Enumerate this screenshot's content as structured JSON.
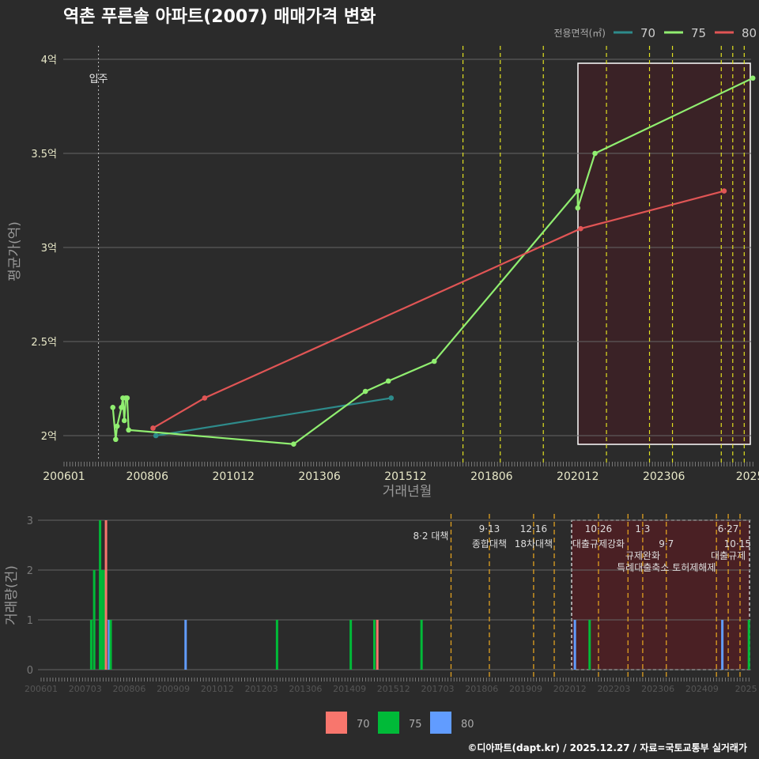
{
  "title": "역촌 푸른솔 아파트(2007) 매매가격 변화",
  "footer": "©디아파트(dapt.kr) / 2025.12.27 / 자료=국토교통부 실거래가",
  "colors": {
    "s70": "#2e8b8b",
    "s75": "#90ee70",
    "s80": "#e05555",
    "b70": "#f8766d",
    "b75": "#00ba38",
    "b80": "#619cff",
    "policy_top": "#e0e020",
    "policy_bottom": "#e0a020"
  },
  "chart_data": [
    {
      "type": "line",
      "title": "역촌 푸른솔 아파트(2007) 매매가격 변화",
      "xlabel": "거래년월",
      "ylabel": "평균가(억)",
      "legend_title": "전용면적(㎡)",
      "legend_position": "top-right",
      "x_ticks": [
        "200601",
        "200806",
        "201012",
        "201306",
        "201512",
        "201806",
        "202012",
        "202306",
        "2025"
      ],
      "x_tick_months": [
        0,
        29,
        59,
        89,
        119,
        149,
        179,
        209,
        239
      ],
      "y_ticks": [
        {
          "v": 2,
          "label": "2억"
        },
        {
          "v": 2.5,
          "label": "2.5억"
        },
        {
          "v": 3,
          "label": "3억"
        },
        {
          "v": 3.5,
          "label": "3.5억"
        },
        {
          "v": 4,
          "label": "4억"
        }
      ],
      "ylim": [
        1.87,
        4.05
      ],
      "x_range_months": [
        0,
        240
      ],
      "start": "200601",
      "annotation": {
        "label": "입주",
        "month": 12
      },
      "highlight_from_month": 179,
      "series": [
        {
          "name": "70",
          "points": [
            [
              32,
              2.0
            ],
            [
              114,
              2.2
            ]
          ]
        },
        {
          "name": "75",
          "points": [
            [
              17,
              2.15
            ],
            [
              18,
              1.98
            ],
            [
              18.5,
              2.05
            ],
            [
              20,
              2.15
            ],
            [
              20.5,
              2.2
            ],
            [
              21,
              2.08
            ],
            [
              21.5,
              2.2
            ],
            [
              22,
              2.2
            ],
            [
              22.5,
              2.03
            ],
            [
              80,
              1.955
            ],
            [
              105,
              2.235
            ],
            [
              113,
              2.29
            ],
            [
              129,
              2.395
            ],
            [
              179,
              3.3
            ],
            [
              179,
              3.21
            ],
            [
              185,
              3.5
            ],
            [
              240,
              3.9
            ]
          ]
        },
        {
          "name": "80",
          "points": [
            [
              31,
              2.04
            ],
            [
              49,
              2.2
            ],
            [
              180,
              3.1
            ],
            [
              230,
              3.3
            ]
          ]
        }
      ]
    },
    {
      "type": "bar",
      "xlabel": "",
      "ylabel": "거래량(건)",
      "y_ticks": [
        0,
        1,
        2,
        3
      ],
      "ylim": [
        0,
        3
      ],
      "x_ticks": [
        "200601",
        "200703",
        "200806",
        "200909",
        "201012",
        "201203",
        "201306",
        "201409",
        "201512",
        "201703",
        "201806",
        "201909",
        "202012",
        "202203",
        "202306",
        "202409",
        "2025"
      ],
      "legend": [
        "70",
        "75",
        "80"
      ],
      "legend_position": "bottom",
      "bars": [
        {
          "m": 17,
          "s": "75",
          "v": 1
        },
        {
          "m": 18,
          "s": "75",
          "v": 2
        },
        {
          "m": 20,
          "s": "75",
          "v": 3
        },
        {
          "m": 20.7,
          "s": "75",
          "v": 2
        },
        {
          "m": 21.5,
          "s": "75",
          "v": 2
        },
        {
          "m": 22,
          "s": "70",
          "v": 3
        },
        {
          "m": 23,
          "s": "80",
          "v": 1
        },
        {
          "m": 23.6,
          "s": "75",
          "v": 1
        },
        {
          "m": 49,
          "s": "80",
          "v": 1
        },
        {
          "m": 80,
          "s": "75",
          "v": 1
        },
        {
          "m": 105,
          "s": "75",
          "v": 1
        },
        {
          "m": 113,
          "s": "75",
          "v": 1
        },
        {
          "m": 114,
          "s": "70",
          "v": 1
        },
        {
          "m": 129,
          "s": "75",
          "v": 1
        },
        {
          "m": 181,
          "s": "80",
          "v": 1
        },
        {
          "m": 186,
          "s": "75",
          "v": 1
        },
        {
          "m": 231,
          "s": "80",
          "v": 1
        },
        {
          "m": 240,
          "s": "75",
          "v": 1
        }
      ],
      "policies": [
        {
          "m": 139,
          "date": "",
          "label": "8·2 대책"
        },
        {
          "m": 152,
          "date": "9·13",
          "label": "종합대책"
        },
        {
          "m": 167,
          "date": "12·16",
          "label": "18차대책"
        },
        {
          "m": 174,
          "date": "",
          "label": ""
        },
        {
          "m": 189,
          "date": "10·26",
          "label": "대출규제강화"
        },
        {
          "m": 199,
          "date": "",
          "label": ""
        },
        {
          "m": 204,
          "date": "1·3",
          "label": "규제완화"
        },
        {
          "m": 212,
          "date": "9·7",
          "label": "특례대출축소 토허제해제"
        },
        {
          "m": 229,
          "date": "",
          "label": ""
        },
        {
          "m": 233,
          "date": "6·27",
          "label": "대출규제"
        },
        {
          "m": 237,
          "date": "10·15",
          "label": ""
        }
      ]
    }
  ]
}
